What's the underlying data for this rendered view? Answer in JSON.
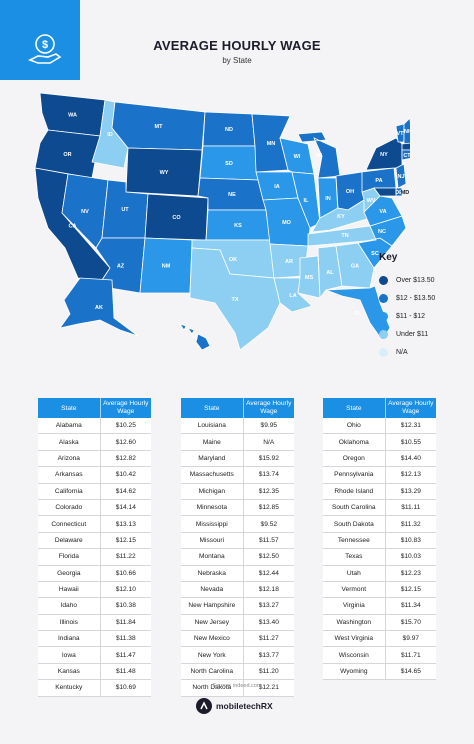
{
  "header": {
    "title": "AVERAGE HOURLY WAGE",
    "subtitle": "by State"
  },
  "key": {
    "title": "Key",
    "items": [
      {
        "label": "Over $13.50",
        "color": "#0d4a8f"
      },
      {
        "label": "$12 - $13.50",
        "color": "#1a73c9"
      },
      {
        "label": "$11 - $12",
        "color": "#2a97e8"
      },
      {
        "label": "Under $11",
        "color": "#8ccff3"
      },
      {
        "label": "N/A",
        "color": "#d8eef9"
      }
    ]
  },
  "chart_data": {
    "type": "table",
    "column_headers": [
      "State",
      "Average Hourly Wage"
    ],
    "tables": [
      [
        [
          "Alabama",
          "$10.25"
        ],
        [
          "Alaska",
          "$12.60"
        ],
        [
          "Arizona",
          "$12.82"
        ],
        [
          "Arkansas",
          "$10.42"
        ],
        [
          "California",
          "$14.62"
        ],
        [
          "Colorado",
          "$14.14"
        ],
        [
          "Connecticut",
          "$13.13"
        ],
        [
          "Delaware",
          "$12.15"
        ],
        [
          "Florida",
          "$11.22"
        ],
        [
          "Georgia",
          "$10.66"
        ],
        [
          "Hawaii",
          "$12.10"
        ],
        [
          "Idaho",
          "$10.38"
        ],
        [
          "Illinois",
          "$11.84"
        ],
        [
          "Indiana",
          "$11.38"
        ],
        [
          "Iowa",
          "$11.47"
        ],
        [
          "Kansas",
          "$11.48"
        ],
        [
          "Kentucky",
          "$10.69"
        ]
      ],
      [
        [
          "Louisiana",
          "$9.95"
        ],
        [
          "Maine",
          "N/A"
        ],
        [
          "Maryland",
          "$15.92"
        ],
        [
          "Massachusetts",
          "$13.74"
        ],
        [
          "Michigan",
          "$12.35"
        ],
        [
          "Minnesota",
          "$12.85"
        ],
        [
          "Mississippi",
          "$9.52"
        ],
        [
          "Missouri",
          "$11.57"
        ],
        [
          "Montana",
          "$12.50"
        ],
        [
          "Nebraska",
          "$12.44"
        ],
        [
          "Nevada",
          "$12.18"
        ],
        [
          "New Hampshire",
          "$13.27"
        ],
        [
          "New Jersey",
          "$13.40"
        ],
        [
          "New Mexico",
          "$11.27"
        ],
        [
          "New York",
          "$13.77"
        ],
        [
          "North Carolina",
          "$11.20"
        ],
        [
          "North Dakota",
          "$12.21"
        ]
      ],
      [
        [
          "Ohio",
          "$12.31"
        ],
        [
          "Oklahoma",
          "$10.55"
        ],
        [
          "Oregon",
          "$14.40"
        ],
        [
          "Pennsylvania",
          "$12.13"
        ],
        [
          "Rhode Island",
          "$13.29"
        ],
        [
          "South Carolina",
          "$11.11"
        ],
        [
          "South Dakota",
          "$11.32"
        ],
        [
          "Tennessee",
          "$10.83"
        ],
        [
          "Texas",
          "$10.03"
        ],
        [
          "Utah",
          "$12.23"
        ],
        [
          "Vermont",
          "$12.15"
        ],
        [
          "Virginia",
          "$11.34"
        ],
        [
          "Washington",
          "$15.70"
        ],
        [
          "West Virginia",
          "$9.97"
        ],
        [
          "Wisconsin",
          "$11.71"
        ],
        [
          "Wyoming",
          "$14.65"
        ]
      ]
    ]
  },
  "map": {
    "states": [
      {
        "code": "WA",
        "color": "#0d4a8f"
      },
      {
        "code": "OR",
        "color": "#0d4a8f"
      },
      {
        "code": "CA",
        "color": "#0d4a8f"
      },
      {
        "code": "NV",
        "color": "#1a73c9"
      },
      {
        "code": "ID",
        "color": "#8ccff3"
      },
      {
        "code": "MT",
        "color": "#1a73c9"
      },
      {
        "code": "WY",
        "color": "#0d4a8f"
      },
      {
        "code": "UT",
        "color": "#1a73c9"
      },
      {
        "code": "AZ",
        "color": "#1a73c9"
      },
      {
        "code": "CO",
        "color": "#0d4a8f"
      },
      {
        "code": "NM",
        "color": "#2a97e8"
      },
      {
        "code": "ND",
        "color": "#1a73c9"
      },
      {
        "code": "SD",
        "color": "#2a97e8"
      },
      {
        "code": "NE",
        "color": "#1a73c9"
      },
      {
        "code": "KS",
        "color": "#2a97e8"
      },
      {
        "code": "OK",
        "color": "#8ccff3"
      },
      {
        "code": "TX",
        "color": "#8ccff3"
      },
      {
        "code": "MN",
        "color": "#1a73c9"
      },
      {
        "code": "IA",
        "color": "#2a97e8"
      },
      {
        "code": "MO",
        "color": "#2a97e8"
      },
      {
        "code": "AR",
        "color": "#8ccff3"
      },
      {
        "code": "LA",
        "color": "#8ccff3"
      },
      {
        "code": "WI",
        "color": "#2a97e8"
      },
      {
        "code": "IL",
        "color": "#2a97e8"
      },
      {
        "code": "MS",
        "color": "#8ccff3"
      },
      {
        "code": "MI",
        "color": "#1a73c9"
      },
      {
        "code": "IN",
        "color": "#2a97e8"
      },
      {
        "code": "KY",
        "color": "#8ccff3"
      },
      {
        "code": "TN",
        "color": "#8ccff3"
      },
      {
        "code": "AL",
        "color": "#8ccff3"
      },
      {
        "code": "OH",
        "color": "#1a73c9"
      },
      {
        "code": "GA",
        "color": "#8ccff3"
      },
      {
        "code": "FL",
        "color": "#2a97e8"
      },
      {
        "code": "SC",
        "color": "#2a97e8"
      },
      {
        "code": "NC",
        "color": "#2a97e8"
      },
      {
        "code": "VA",
        "color": "#2a97e8"
      },
      {
        "code": "WV",
        "color": "#8ccff3"
      },
      {
        "code": "PA",
        "color": "#1a73c9"
      },
      {
        "code": "NY",
        "color": "#0d4a8f"
      },
      {
        "code": "VT",
        "color": "#1a73c9"
      },
      {
        "code": "NH",
        "color": "#1a73c9"
      },
      {
        "code": "ME",
        "color": "#d8eef9"
      },
      {
        "code": "MA",
        "color": "#0d4a8f"
      },
      {
        "code": "RI",
        "color": "#1a73c9"
      },
      {
        "code": "CT",
        "color": "#1a73c9"
      },
      {
        "code": "NJ",
        "color": "#1a73c9"
      },
      {
        "code": "DE",
        "color": "#1a73c9"
      },
      {
        "code": "MD",
        "color": "#0d4a8f"
      },
      {
        "code": "AK",
        "color": "#1a73c9"
      },
      {
        "code": "HI",
        "color": "#1a73c9"
      }
    ]
  },
  "footer": {
    "source": "Source: indeed.com",
    "brand": "mobiletechRX"
  }
}
